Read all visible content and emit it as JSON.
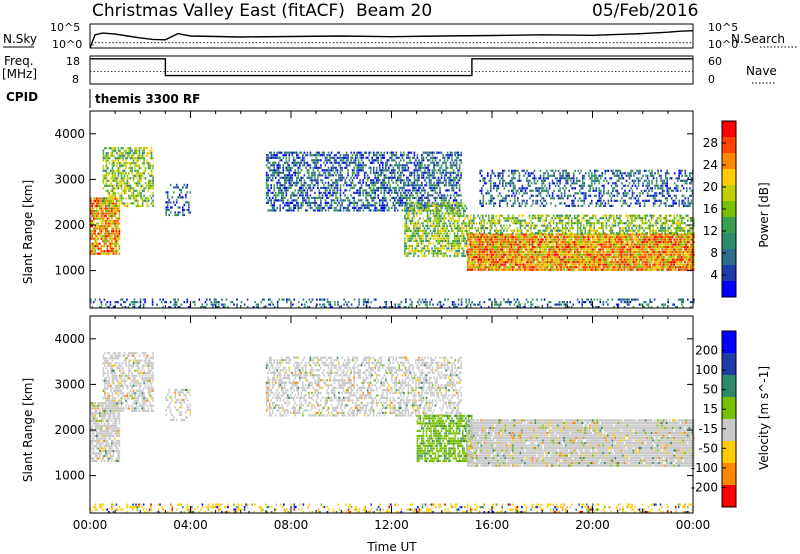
{
  "header": {
    "station": "Christmas Valley East (fitACF)",
    "beam": "Beam 20",
    "date": "05/Feb/2016"
  },
  "panel_labels": {
    "nsky": "N.Sky",
    "nsearch": "N.Search",
    "freq_top": "Freq.",
    "freq_unit": "[MHz]",
    "nave": "Nave",
    "cpid": "CPID",
    "cpid_value": "themis 3300 RF"
  },
  "small_axes": {
    "noise_left": [
      "10^5",
      "10^0"
    ],
    "noise_right": [
      "10^5",
      "10^0"
    ],
    "freq_left": [
      "18",
      "8"
    ],
    "freq_right": [
      "60",
      "0"
    ]
  },
  "chart_data": [
    {
      "type": "line",
      "name": "noise",
      "x": [
        0,
        0.2,
        0.5,
        1,
        1.5,
        2,
        2.5,
        3,
        3.5,
        4,
        6,
        8,
        10,
        12,
        14,
        16,
        18,
        20,
        22,
        23,
        23.5,
        24
      ],
      "sky": [
        0.0,
        0.55,
        0.62,
        0.58,
        0.5,
        0.42,
        0.36,
        0.34,
        0.6,
        0.5,
        0.46,
        0.48,
        0.5,
        0.47,
        0.5,
        0.52,
        0.55,
        0.53,
        0.6,
        0.66,
        0.7,
        0.72
      ],
      "search": [
        0.0,
        0.22,
        0.22,
        0.22,
        0.22,
        0.22,
        0.22,
        0.22,
        0.22,
        0.22,
        0.22,
        0.22,
        0.22,
        0.22,
        0.22,
        0.22,
        0.22,
        0.22,
        0.22,
        0.22,
        0.22,
        0.22
      ]
    },
    {
      "type": "line",
      "name": "frequency",
      "xlim": [
        0,
        24
      ],
      "ylim": [
        8,
        18
      ],
      "steps": [
        [
          0,
          17
        ],
        [
          3,
          17
        ],
        [
          3,
          11
        ],
        [
          15.2,
          11
        ],
        [
          15.2,
          17
        ],
        [
          24,
          17
        ]
      ],
      "nave_level": 0.45
    },
    {
      "type": "heatmap",
      "name": "power",
      "xlabel": "",
      "ylabel": "Slant Range [km]",
      "xlim": [
        0,
        24
      ],
      "ylim": [
        180,
        4500
      ],
      "yticks": [
        1000,
        2000,
        3000,
        4000
      ],
      "colorbar": {
        "label": "Power [dB]",
        "ticks": [
          "28",
          "24",
          "20",
          "16",
          "12",
          "8",
          "4"
        ],
        "colors": [
          "#ff0000",
          "#ff4400",
          "#ff8800",
          "#ffcc00",
          "#c0d000",
          "#79c000",
          "#3aa050",
          "#2f8a6a",
          "#2c6c8c",
          "#1e3ca8",
          "#0000ff"
        ]
      },
      "features": [
        {
          "t0": 0.0,
          "t1": 1.2,
          "r0": 1350,
          "r1": 2600,
          "level": "high",
          "density": 0.8
        },
        {
          "t0": 0.5,
          "t1": 2.5,
          "r0": 2400,
          "r1": 3700,
          "level": "mid",
          "density": 0.6
        },
        {
          "t0": 3.0,
          "t1": 4.0,
          "r0": 2200,
          "r1": 2900,
          "level": "low",
          "density": 0.4
        },
        {
          "t0": 7.0,
          "t1": 14.8,
          "r0": 2300,
          "r1": 3600,
          "level": "low",
          "density": 0.55
        },
        {
          "t0": 12.5,
          "t1": 15.0,
          "r0": 1300,
          "r1": 2500,
          "level": "mid",
          "density": 0.65
        },
        {
          "t0": 15.0,
          "t1": 24.0,
          "r0": 1000,
          "r1": 1800,
          "level": "high",
          "density": 0.95
        },
        {
          "t0": 15.0,
          "t1": 24.0,
          "r0": 1800,
          "r1": 2200,
          "level": "mid",
          "density": 0.6
        },
        {
          "t0": 15.5,
          "t1": 24.0,
          "r0": 2400,
          "r1": 3200,
          "level": "low",
          "density": 0.4
        },
        {
          "t0": 0.0,
          "t1": 24.0,
          "r0": 180,
          "r1": 400,
          "level": "low",
          "density": 0.3
        }
      ]
    },
    {
      "type": "heatmap",
      "name": "velocity",
      "xlabel": "Time UT",
      "ylabel": "Slant Range [km]",
      "xlim": [
        0,
        24
      ],
      "ylim": [
        180,
        4500
      ],
      "yticks": [
        1000,
        2000,
        3000,
        4000
      ],
      "xticks": [
        "00:00",
        "04:00",
        "08:00",
        "12:00",
        "16:00",
        "20:00",
        "00:00"
      ],
      "colorbar": {
        "label": "Velocity [m s^-1]",
        "ticks": [
          "200",
          "100",
          "50",
          "15",
          "-15",
          "-50",
          "-100",
          "-200"
        ],
        "colors": [
          "#0000ff",
          "#1e3ca8",
          "#2f8a6a",
          "#79c000",
          "#c8c8c8",
          "#ffcc00",
          "#ff8800",
          "#ff0000"
        ]
      },
      "features": [
        {
          "t0": 0.0,
          "t1": 1.2,
          "r0": 1300,
          "r1": 2600,
          "level": "zero",
          "density": 0.8
        },
        {
          "t0": 0.5,
          "t1": 2.5,
          "r0": 2400,
          "r1": 3700,
          "level": "zero",
          "density": 0.6
        },
        {
          "t0": 3.0,
          "t1": 4.0,
          "r0": 2200,
          "r1": 2900,
          "level": "zero",
          "density": 0.4
        },
        {
          "t0": 7.0,
          "t1": 14.8,
          "r0": 2300,
          "r1": 3600,
          "level": "zero",
          "density": 0.5
        },
        {
          "t0": 13.0,
          "t1": 15.2,
          "r0": 1300,
          "r1": 2300,
          "level": "pos",
          "density": 0.7
        },
        {
          "t0": 15.0,
          "t1": 24.0,
          "r0": 1200,
          "r1": 2200,
          "level": "zero",
          "density": 0.95
        },
        {
          "t0": 0.0,
          "t1": 24.0,
          "r0": 180,
          "r1": 400,
          "level": "neg",
          "density": 0.3
        }
      ]
    }
  ]
}
